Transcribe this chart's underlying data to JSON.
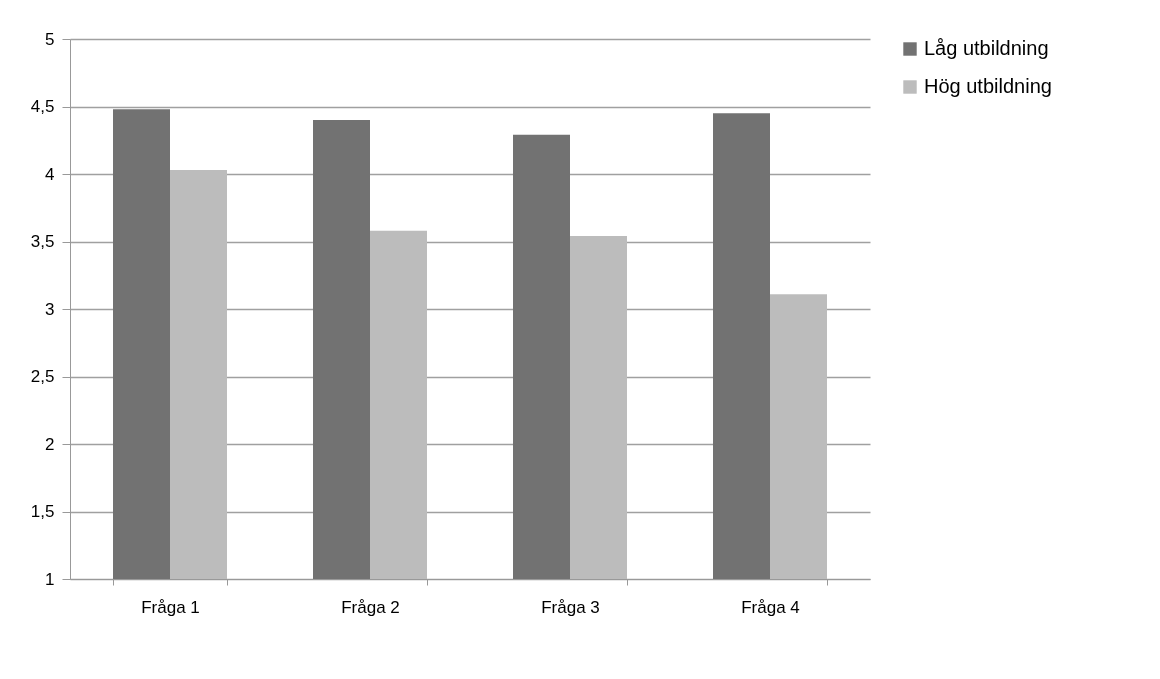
{
  "chart_data": {
    "type": "bar",
    "categories": [
      "Fråga 1",
      "Fråga 2",
      "Fråga 3",
      "Fråga 4"
    ],
    "series": [
      {
        "name": "Låg utbildning",
        "color": "#727272",
        "values": [
          4.48,
          4.4,
          4.29,
          4.45
        ]
      },
      {
        "name": "Hög utbildning",
        "color": "#bcbcbc",
        "values": [
          4.03,
          3.58,
          3.54,
          3.11
        ]
      }
    ],
    "ylim": [
      1,
      5
    ],
    "yticks": [
      1,
      {
        "value": 1.5,
        "label": "1,5"
      },
      2,
      {
        "value": 2.5,
        "label": "2,5"
      },
      3,
      {
        "value": 3.5,
        "label": "3,5"
      },
      4,
      {
        "value": 4.5,
        "label": "4,5"
      },
      5
    ],
    "grid": "y",
    "legend": "right"
  }
}
